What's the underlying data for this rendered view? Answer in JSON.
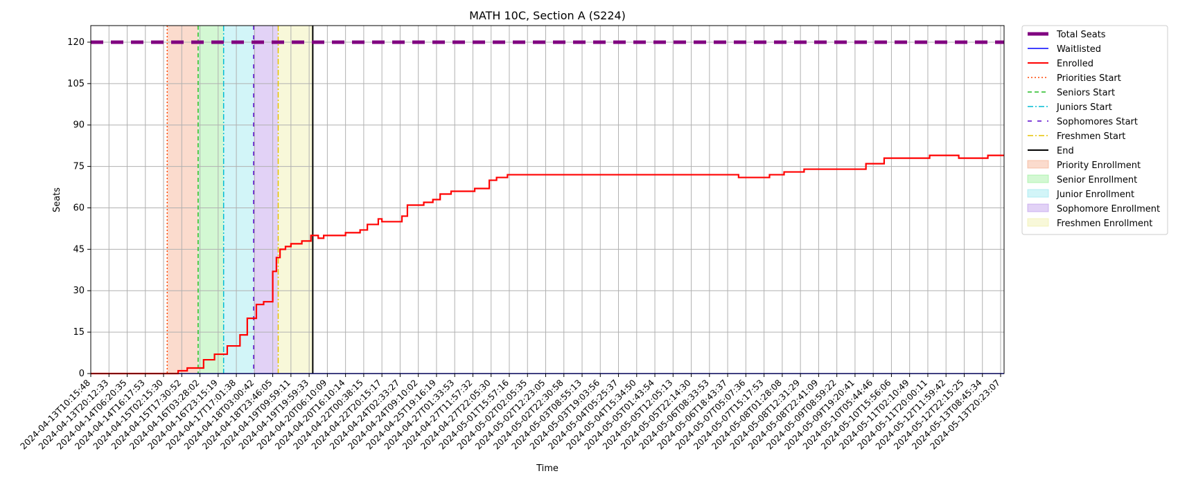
{
  "chart_data": {
    "type": "line",
    "title": "MATH 10C, Section A (S224)",
    "xlabel": "Time",
    "ylabel": "Seats",
    "ylim": [
      0,
      126
    ],
    "yticks": [
      0,
      15,
      30,
      45,
      60,
      75,
      90,
      105,
      120
    ],
    "grid": true,
    "legend_position": "outside-right",
    "x_tick_labels": [
      "2024-04-13T10:15:48",
      "2024-04-13T20:12:33",
      "2024-04-14T06:20:35",
      "2024-04-14T16:17:53",
      "2024-04-15T02:15:30",
      "2024-04-15T17:30:52",
      "2024-04-16T03:28:02",
      "2024-04-16T23:15:19",
      "2024-04-17T17:01:38",
      "2024-04-18T03:00:42",
      "2024-04-18T23:46:05",
      "2024-04-19T09:59:11",
      "2024-04-19T19:59:33",
      "2024-04-20T06:10:09",
      "2024-04-20T16:10:14",
      "2024-04-22T00:38:15",
      "2024-04-22T20:15:17",
      "2024-04-24T02:33:27",
      "2024-04-24T09:10:02",
      "2024-04-25T19:16:19",
      "2024-04-27T01:33:53",
      "2024-04-27T11:57:32",
      "2024-04-27T22:05:30",
      "2024-05-01T15:57:16",
      "2024-05-02T02:05:35",
      "2024-05-02T12:23:05",
      "2024-05-02T22:30:58",
      "2024-05-03T08:55:13",
      "2024-05-03T19:03:56",
      "2024-05-04T05:25:37",
      "2024-05-04T15:34:50",
      "2024-05-05T01:43:54",
      "2024-05-05T12:05:13",
      "2024-05-05T22:14:30",
      "2024-05-06T08:33:53",
      "2024-05-06T18:43:37",
      "2024-05-07T05:07:36",
      "2024-05-07T15:17:53",
      "2024-05-08T01:28:08",
      "2024-05-08T12:31:29",
      "2024-05-08T22:41:09",
      "2024-05-09T08:59:22",
      "2024-05-09T19:20:41",
      "2024-05-10T05:44:46",
      "2024-05-10T15:56:06",
      "2024-05-11T02:10:49",
      "2024-05-11T20:00:11",
      "2024-05-12T11:59:42",
      "2024-05-12T22:15:25",
      "2024-05-13T08:45:34",
      "2024-05-13T20:23:07"
    ],
    "series": [
      {
        "name": "Total Seats",
        "color": "#800080",
        "style": "dashed",
        "value": 120
      },
      {
        "name": "Waitlisted",
        "color": "#0000ff",
        "style": "solid",
        "value": 0
      },
      {
        "name": "Enrolled",
        "color": "#ff0000",
        "style": "solid",
        "steps": [
          [
            0,
            0
          ],
          [
            4.8,
            1
          ],
          [
            5.3,
            2
          ],
          [
            6.2,
            5
          ],
          [
            6.8,
            7
          ],
          [
            7.5,
            10
          ],
          [
            8.2,
            14
          ],
          [
            8.6,
            20
          ],
          [
            9.1,
            25
          ],
          [
            9.5,
            26
          ],
          [
            9.9,
            26
          ],
          [
            10.0,
            37
          ],
          [
            10.2,
            42
          ],
          [
            10.4,
            45
          ],
          [
            10.7,
            46
          ],
          [
            11.0,
            47
          ],
          [
            11.6,
            48
          ],
          [
            12.1,
            50
          ],
          [
            12.5,
            49
          ],
          [
            12.8,
            50
          ],
          [
            13.4,
            50
          ],
          [
            14.0,
            51
          ],
          [
            14.8,
            52
          ],
          [
            15.2,
            54
          ],
          [
            15.8,
            56
          ],
          [
            16.0,
            55
          ],
          [
            17.1,
            57
          ],
          [
            17.4,
            61
          ],
          [
            17.9,
            61
          ],
          [
            18.3,
            62
          ],
          [
            18.8,
            63
          ],
          [
            19.2,
            65
          ],
          [
            19.8,
            66
          ],
          [
            21.1,
            67
          ],
          [
            21.9,
            70
          ],
          [
            22.3,
            71
          ],
          [
            22.9,
            72
          ],
          [
            35.2,
            72
          ],
          [
            35.6,
            71
          ],
          [
            37.3,
            72
          ],
          [
            38.1,
            73
          ],
          [
            39.2,
            74
          ],
          [
            42.3,
            74
          ],
          [
            42.6,
            76
          ],
          [
            43.6,
            78
          ],
          [
            46.1,
            79
          ],
          [
            47.7,
            78
          ],
          [
            49.3,
            79
          ],
          [
            50.2,
            79
          ]
        ]
      },
      {
        "name": "Priorities Start",
        "color": "#ff4500",
        "style": "dotted",
        "x": 4.2
      },
      {
        "name": "Seniors Start",
        "color": "#22bb22",
        "style": "dashed",
        "x": 5.9
      },
      {
        "name": "Juniors Start",
        "color": "#00bcd4",
        "style": "dashdot",
        "x": 7.3
      },
      {
        "name": "Sophomores Start",
        "color": "#5500cc",
        "style": "loosedash",
        "x": 8.95
      },
      {
        "name": "Freshmen Start",
        "color": "#e6c200",
        "style": "dashdot",
        "x": 10.3
      },
      {
        "name": "End",
        "color": "#000000",
        "style": "solid",
        "x": 12.2
      }
    ],
    "regions": [
      {
        "name": "Priority Enrollment",
        "color": "#f4a582",
        "from": 4.2,
        "to": 5.9
      },
      {
        "name": "Senior Enrollment",
        "color": "#90ee90",
        "from": 5.9,
        "to": 7.3
      },
      {
        "name": "Junior Enrollment",
        "color": "#8ee5ee",
        "from": 7.3,
        "to": 8.95
      },
      {
        "name": "Sophomore Enrollment",
        "color": "#b68ee8",
        "from": 8.95,
        "to": 10.3
      },
      {
        "name": "Freshmen Enrollment",
        "color": "#eeeea0",
        "from": 10.3,
        "to": 12.2
      }
    ]
  }
}
